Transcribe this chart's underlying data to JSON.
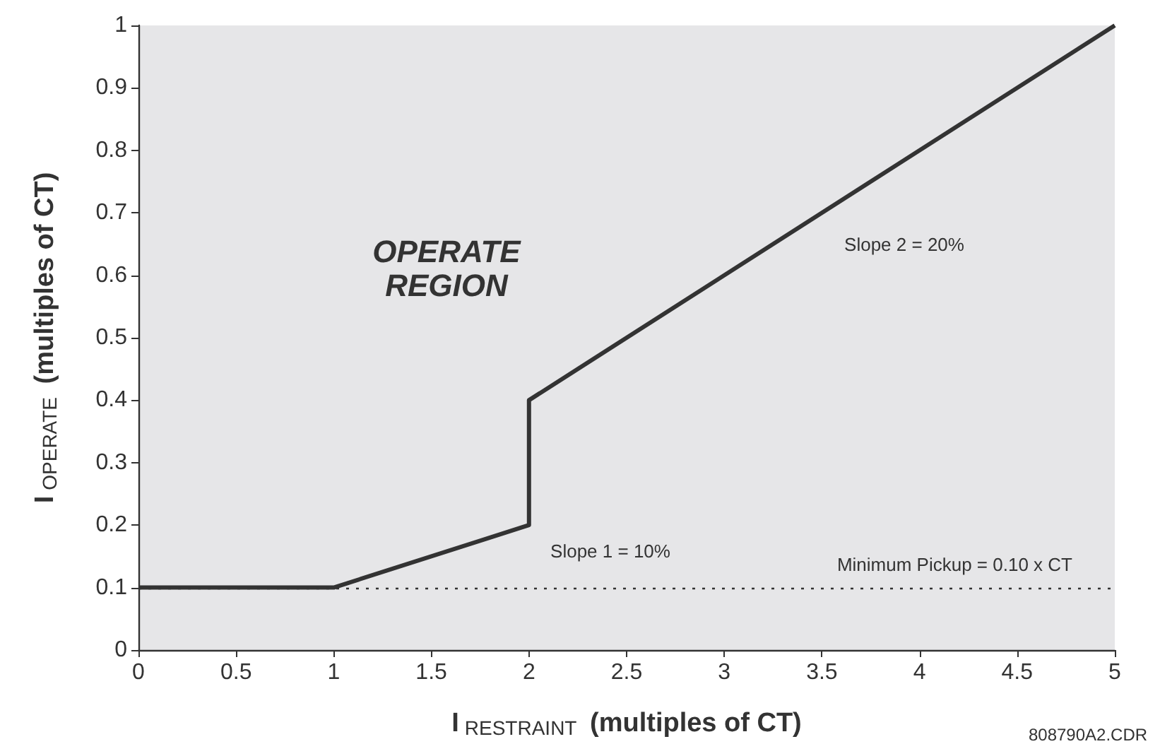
{
  "chart_data": {
    "type": "line",
    "xlabel": "I$_{RESTRAINT}$ (multiples of CT)",
    "ylabel": "I$_{OPERATE}$ (multiples of CT)",
    "x": [
      0,
      1,
      2,
      2,
      5
    ],
    "series": [
      {
        "color": "#333333",
        "values": [
          0.1,
          0.1,
          0.2,
          0.4,
          1.0
        ]
      }
    ],
    "xlim": [
      0,
      5
    ],
    "xticks": [
      0,
      0.5,
      1,
      1.5,
      2,
      2.5,
      3,
      3.5,
      4,
      4.5,
      5
    ],
    "ylim": [
      0,
      1
    ],
    "yticks": [
      0,
      0.1,
      0.2,
      0.3,
      0.4,
      0.5,
      0.6,
      0.7,
      0.8,
      0.9,
      1
    ],
    "grid": false,
    "marker": "none",
    "line_style": "solid",
    "ref_lines": [
      {
        "axis": "y",
        "value": 0.1,
        "label": "Minimum Pickup = 0.10 x CT",
        "line_style": "dotted",
        "color": "#333333"
      }
    ],
    "annotations": [
      "OPERATE\nREGION",
      "Slope 1 = 10%",
      "Slope 2 = 20%",
      "808790A2.CDR"
    ]
  }
}
